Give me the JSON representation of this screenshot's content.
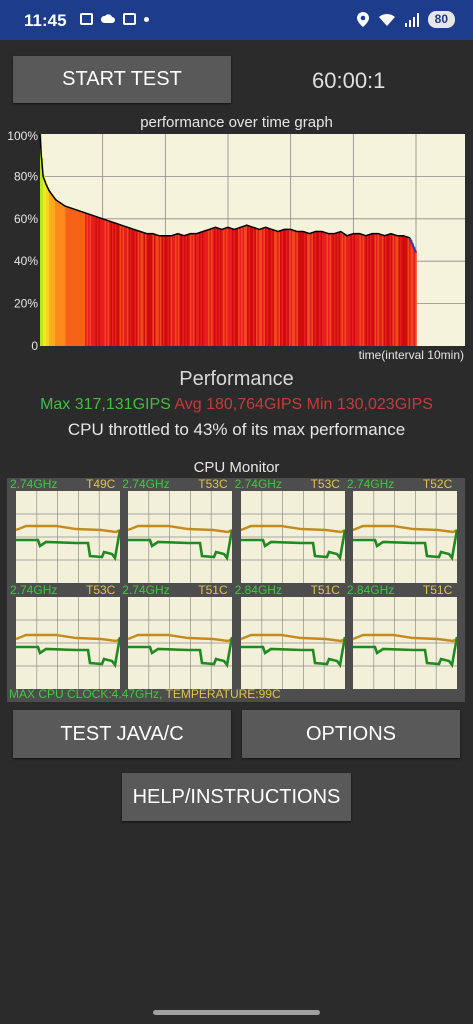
{
  "status": {
    "time": "11:45",
    "battery": "80"
  },
  "controls": {
    "start_label": "START TEST",
    "timer": "60:00:1",
    "java_label": "TEST JAVA/C",
    "options_label": "OPTIONS",
    "help_label": "HELP/INSTRUCTIONS"
  },
  "graph": {
    "title": "performance over time graph",
    "xlabel": "time(interval 10min)",
    "yticks": [
      "100%",
      "80%",
      "60%",
      "40%",
      "20%",
      "0"
    ]
  },
  "performance": {
    "heading": "Performance",
    "max": "Max 317,131GIPS",
    "avg": "Avg 180,764GIPS",
    "min": "Min 130,023GIPS",
    "throttle_text": "CPU throttled to 43% of its max performance",
    "colors": {
      "max": "#3fbf3f",
      "avg": "#c83a3a",
      "min": "#c83a3a"
    }
  },
  "chart_data": {
    "type": "area",
    "title": "performance over time graph",
    "xlabel": "time(interval 10min)",
    "ylabel": "",
    "ylim": [
      0,
      100
    ],
    "x": [
      0,
      0.2,
      0.5,
      1,
      1.5,
      2,
      2.5,
      3,
      3.5,
      4,
      5,
      6,
      7,
      8,
      9,
      10,
      11,
      12,
      13,
      14,
      15,
      16,
      17,
      18,
      19,
      20,
      21,
      22,
      23,
      24,
      25,
      26,
      27,
      28,
      29,
      30,
      31,
      32,
      33,
      34,
      35,
      36,
      37,
      38,
      39,
      40,
      41,
      42,
      43,
      44,
      45,
      46,
      47,
      48,
      49,
      50,
      51,
      52,
      53,
      54,
      55,
      56,
      57,
      58,
      59,
      60
    ],
    "series": [
      {
        "values": [
          100,
          90,
          80,
          76,
          73,
          71,
          69,
          68,
          67,
          66,
          65,
          64,
          63,
          62,
          61,
          60,
          59,
          58,
          57,
          56,
          55,
          54,
          53,
          53,
          52,
          52,
          52,
          53,
          52,
          53,
          53,
          54,
          55,
          56,
          55,
          56,
          55,
          56,
          57,
          56,
          55,
          56,
          55,
          54,
          55,
          55,
          54,
          54,
          53,
          54,
          54,
          53,
          53,
          54,
          52,
          53,
          53,
          52,
          53,
          53,
          52,
          53,
          52,
          52,
          51,
          44
        ]
      }
    ],
    "grid": true
  },
  "cpu": {
    "title": "CPU Monitor",
    "cores": [
      {
        "freq": "2.74GHz",
        "temp": "T49C"
      },
      {
        "freq": "2.74GHz",
        "temp": "T53C"
      },
      {
        "freq": "2.74GHz",
        "temp": "T53C"
      },
      {
        "freq": "2.74GHz",
        "temp": "T52C"
      },
      {
        "freq": "2.74GHz",
        "temp": "T53C"
      },
      {
        "freq": "2.74GHz",
        "temp": "T51C"
      },
      {
        "freq": "2.84GHz",
        "temp": "T51C"
      },
      {
        "freq": "2.84GHz",
        "temp": "T51C"
      }
    ],
    "max_clock": "MAX CPU CLOCK:4.47GHz,",
    "max_temp": "TEMPERATURE:99C"
  }
}
